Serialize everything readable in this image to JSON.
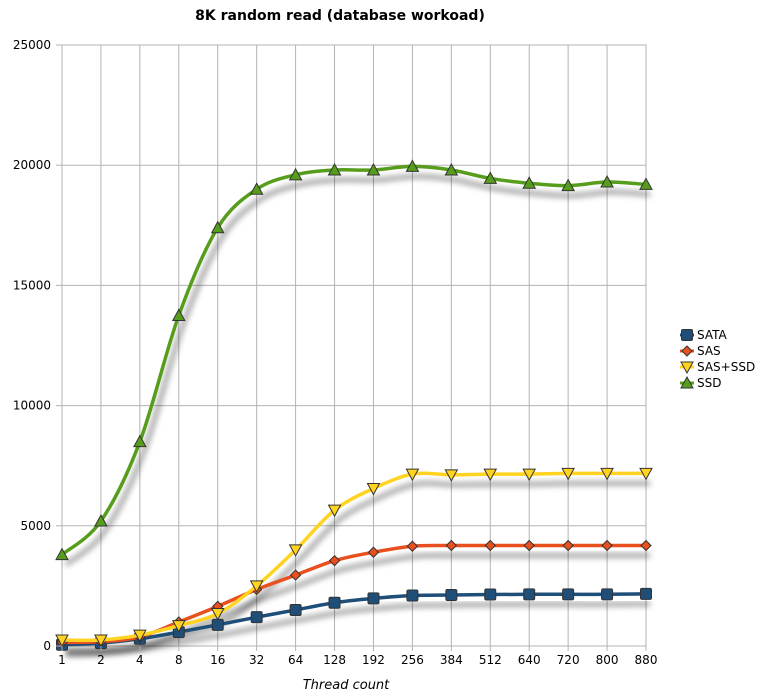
{
  "chart_data": {
    "type": "line",
    "title": "8K random read (database workoad)",
    "xlabel": "Thread count",
    "ylabel": "",
    "categories": [
      "1",
      "2",
      "4",
      "8",
      "16",
      "32",
      "64",
      "128",
      "192",
      "256",
      "384",
      "512",
      "640",
      "720",
      "800",
      "880"
    ],
    "ylim": [
      0,
      25000
    ],
    "yticks": [
      0,
      5000,
      10000,
      15000,
      20000,
      25000
    ],
    "grid": true,
    "legend_position": "right",
    "series": [
      {
        "name": "SATA",
        "color": "#1f4e79",
        "marker": "square",
        "values": [
          50,
          120,
          300,
          580,
          880,
          1200,
          1500,
          1800,
          1980,
          2100,
          2120,
          2140,
          2150,
          2150,
          2150,
          2170
        ]
      },
      {
        "name": "SAS",
        "color": "#e8501e",
        "marker": "diamond",
        "values": [
          150,
          180,
          380,
          1000,
          1650,
          2350,
          2950,
          3550,
          3900,
          4150,
          4180,
          4180,
          4180,
          4180,
          4180,
          4180
        ]
      },
      {
        "name": "SAS+SSD",
        "color": "#ffd320",
        "marker": "triangle-down",
        "values": [
          250,
          250,
          450,
          850,
          1350,
          2500,
          4000,
          5650,
          6550,
          7150,
          7120,
          7150,
          7150,
          7180,
          7180,
          7180
        ]
      },
      {
        "name": "SSD",
        "color": "#579d1c",
        "marker": "triangle-up",
        "values": [
          3800,
          5200,
          8500,
          13750,
          17400,
          19000,
          19600,
          19800,
          19800,
          19950,
          19800,
          19450,
          19250,
          19150,
          19300,
          19200
        ]
      }
    ]
  }
}
